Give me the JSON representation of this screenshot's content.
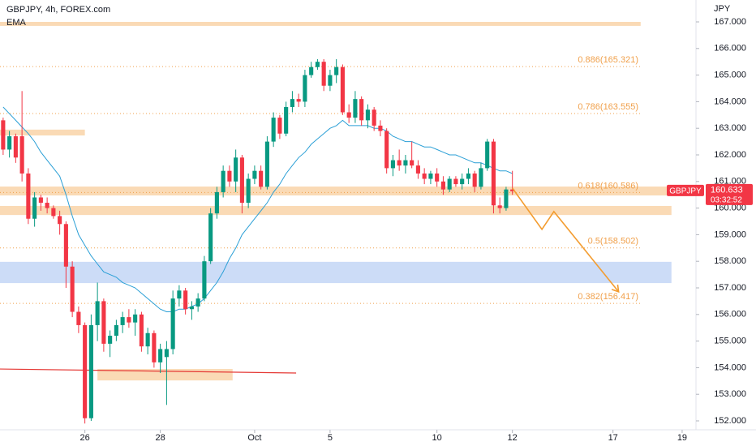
{
  "chart_data": {
    "type": "candlestick",
    "title": "GBPJPY, 4h, FOREX.com",
    "indicator": "EMA",
    "y_axis_label": "JPY",
    "up_color": "#089981",
    "down_color": "#f23645",
    "ema_color": "#2a9fd6",
    "xlim": [
      -0.5,
      110.2
    ],
    "ylim": [
      151.665,
      167.823
    ],
    "xticks": [
      {
        "value": 13,
        "label": "26"
      },
      {
        "value": 25,
        "label": "28"
      },
      {
        "value": 40,
        "label": "Oct"
      },
      {
        "value": 52,
        "label": "5"
      },
      {
        "value": 69,
        "label": "10"
      },
      {
        "value": 81,
        "label": "12"
      },
      {
        "value": 97,
        "label": "17"
      },
      {
        "value": 108,
        "label": "19"
      }
    ],
    "yticks": [
      {
        "value": 152,
        "label": "152.000"
      },
      {
        "value": 153,
        "label": "153.000"
      },
      {
        "value": 154,
        "label": "154.000"
      },
      {
        "value": 155,
        "label": "155.000"
      },
      {
        "value": 156,
        "label": "156.000"
      },
      {
        "value": 157,
        "label": "157.000"
      },
      {
        "value": 158,
        "label": "158.000"
      },
      {
        "value": 159,
        "label": "159.000"
      },
      {
        "value": 160,
        "label": "160.000"
      },
      {
        "value": 161,
        "label": "161.000"
      },
      {
        "value": 162,
        "label": "162.000"
      },
      {
        "value": 163,
        "label": "163.000"
      },
      {
        "value": 164,
        "label": "164.000"
      },
      {
        "value": 165,
        "label": "165.000"
      },
      {
        "value": 166,
        "label": "166.000"
      },
      {
        "value": 167,
        "label": "167.000"
      }
    ],
    "open": [
      163.3,
      162.2,
      162.7,
      162.7,
      161.3,
      159.6,
      160.4,
      160.2,
      160.0,
      159.7,
      159.4,
      157.8,
      156.1,
      155.6,
      152.1,
      155.6,
      156.5,
      154.9,
      155.2,
      155.6,
      155.9,
      155.7,
      156.0,
      154.8,
      155.3,
      154.2,
      154.4,
      154.7,
      156.6,
      156.9,
      156.2,
      156.3,
      156.6,
      158.0,
      159.8,
      160.6,
      161.4,
      161.0,
      161.9,
      160.2,
      161.1,
      161.4,
      160.8,
      162.5,
      163.4,
      162.8,
      163.8,
      164.1,
      164.0,
      165.0,
      165.3,
      165.5,
      164.6,
      165.0,
      165.3,
      163.6,
      163.4,
      164.1,
      163.3,
      163.7,
      163.1,
      162.9,
      161.5,
      161.8,
      161.6,
      161.8,
      161.6,
      161.3,
      161.1,
      161.3,
      161.0,
      160.7,
      161.1,
      160.9,
      161.1,
      161.3,
      160.8,
      161.5,
      162.5,
      160.1,
      160.0,
      160.7
    ],
    "high": [
      163.4,
      162.9,
      162.8,
      164.4,
      161.5,
      160.6,
      160.5,
      160.4,
      160.1,
      159.9,
      159.5,
      158.0,
      156.3,
      155.7,
      156.0,
      157.2,
      156.6,
      155.4,
      155.8,
      156.1,
      156.2,
      156.2,
      156.1,
      155.5,
      155.4,
      154.9,
      155.0,
      156.9,
      157.1,
      157.0,
      156.5,
      156.8,
      158.2,
      160.0,
      160.8,
      161.6,
      161.6,
      162.2,
      162.0,
      161.3,
      161.6,
      161.6,
      162.7,
      163.6,
      163.5,
      164.0,
      164.4,
      164.3,
      165.2,
      165.5,
      165.6,
      165.6,
      165.2,
      165.6,
      165.4,
      163.9,
      164.4,
      164.2,
      163.9,
      163.8,
      163.3,
      163.0,
      162.0,
      162.2,
      162.0,
      162.5,
      161.8,
      161.5,
      161.4,
      161.5,
      161.2,
      161.2,
      161.2,
      161.3,
      161.5,
      161.4,
      161.7,
      162.6,
      162.6,
      160.4,
      160.8,
      161.4
    ],
    "low": [
      162.0,
      161.9,
      161.7,
      161.0,
      159.4,
      159.3,
      159.9,
      159.8,
      159.6,
      159.0,
      157.0,
      155.9,
      155.3,
      151.9,
      152.0,
      155.0,
      154.6,
      154.4,
      155.0,
      155.3,
      155.5,
      155.2,
      154.6,
      154.5,
      154.0,
      153.8,
      152.6,
      154.5,
      156.3,
      156.0,
      155.8,
      156.1,
      156.5,
      157.9,
      159.6,
      160.4,
      160.8,
      160.6,
      159.8,
      160.0,
      160.9,
      160.7,
      160.7,
      162.3,
      162.6,
      162.7,
      163.6,
      163.8,
      163.8,
      164.9,
      165.2,
      164.4,
      164.4,
      164.7,
      163.5,
      163.2,
      163.2,
      163.1,
      163.0,
      162.9,
      162.7,
      161.3,
      161.2,
      161.4,
      161.3,
      161.5,
      161.1,
      160.9,
      160.9,
      160.8,
      160.5,
      160.6,
      160.8,
      160.7,
      160.9,
      160.6,
      160.7,
      161.4,
      159.8,
      159.8,
      159.9,
      160.5
    ],
    "close": [
      162.2,
      162.7,
      161.9,
      161.3,
      159.6,
      160.4,
      160.2,
      160.0,
      159.7,
      159.4,
      157.8,
      156.1,
      155.6,
      152.1,
      155.6,
      156.5,
      154.9,
      155.2,
      155.6,
      155.9,
      155.7,
      156.0,
      154.8,
      155.3,
      154.2,
      154.7,
      154.7,
      156.6,
      156.9,
      156.2,
      156.3,
      156.6,
      158.0,
      159.8,
      160.6,
      161.4,
      161.0,
      161.9,
      160.2,
      161.1,
      161.4,
      160.8,
      162.5,
      163.4,
      162.8,
      163.8,
      164.1,
      164.0,
      165.0,
      165.3,
      165.5,
      164.6,
      165.0,
      165.3,
      163.6,
      163.4,
      164.1,
      163.3,
      163.7,
      163.1,
      162.9,
      161.5,
      161.8,
      161.6,
      161.8,
      161.6,
      161.3,
      161.1,
      161.3,
      161.0,
      160.7,
      161.1,
      160.9,
      161.1,
      161.3,
      160.8,
      161.5,
      162.5,
      160.1,
      160.0,
      160.7,
      160.633
    ],
    "ema": [
      163.8,
      163.55,
      163.3,
      163.05,
      162.8,
      162.5,
      162.1,
      161.8,
      161.5,
      161.2,
      160.5,
      159.7,
      159.0,
      158.6,
      158.2,
      157.9,
      157.6,
      157.5,
      157.4,
      157.2,
      157.1,
      157.0,
      156.8,
      156.6,
      156.4,
      156.2,
      156.1,
      156.1,
      156.2,
      156.2,
      156.3,
      156.4,
      156.6,
      156.9,
      157.2,
      157.6,
      158.1,
      158.5,
      159.0,
      159.3,
      159.6,
      159.9,
      160.2,
      160.6,
      160.9,
      161.3,
      161.6,
      161.9,
      162.1,
      162.4,
      162.6,
      162.8,
      163.0,
      163.1,
      163.3,
      163.1,
      163.1,
      163.1,
      163.1,
      163.0,
      163.0,
      162.9,
      162.7,
      162.6,
      162.5,
      162.5,
      162.4,
      162.3,
      162.3,
      162.2,
      162.1,
      162.0,
      162.0,
      161.9,
      161.8,
      161.7,
      161.7,
      161.6,
      161.5,
      161.4,
      161.4,
      161.3
    ],
    "levels": [
      {
        "value": 165.321,
        "label": "0.886(165.321)"
      },
      {
        "value": 163.555,
        "label": "0.786(163.555)"
      },
      {
        "value": 160.586,
        "label": "0.618(160.586)"
      },
      {
        "value": 158.502,
        "label": "0.5(158.502)"
      },
      {
        "value": 156.417,
        "label": "0.382(156.417)"
      }
    ],
    "level_color": "#f0a04b",
    "zones": [
      {
        "x": [
          -0.5,
          101.4
        ],
        "y": [
          166.85,
          167.0
        ],
        "color": "#f9d3a8"
      },
      {
        "x": [
          -0.5,
          13
        ],
        "y": [
          162.73,
          162.95
        ],
        "color": "#f9d3a8"
      },
      {
        "x": [
          -0.5,
          106.3
        ],
        "y": [
          160.475,
          160.81
        ],
        "color": "#f9d3a8"
      },
      {
        "x": [
          -0.5,
          106.3
        ],
        "y": [
          159.74,
          160.08
        ],
        "color": "#f9d3a8"
      },
      {
        "x": [
          -0.5,
          106.3
        ],
        "y": [
          157.18,
          157.98
        ],
        "color": "#c3d6f6"
      },
      {
        "x": [
          15,
          36.5
        ],
        "y": [
          153.52,
          153.95
        ],
        "color": "#f9d3a8"
      }
    ],
    "trendline": {
      "x": [
        -0.5,
        46.6
      ],
      "y": [
        153.95,
        153.8
      ],
      "color": "#e53935"
    },
    "projection": {
      "x": [
        81,
        85.7,
        87.6,
        97.9
      ],
      "y": [
        160.75,
        159.2,
        159.87,
        156.85
      ],
      "color": "#f39c2f"
    },
    "last": {
      "symbol": "GBPJPY",
      "price": 160.633,
      "countdown": "03:32:52"
    }
  }
}
